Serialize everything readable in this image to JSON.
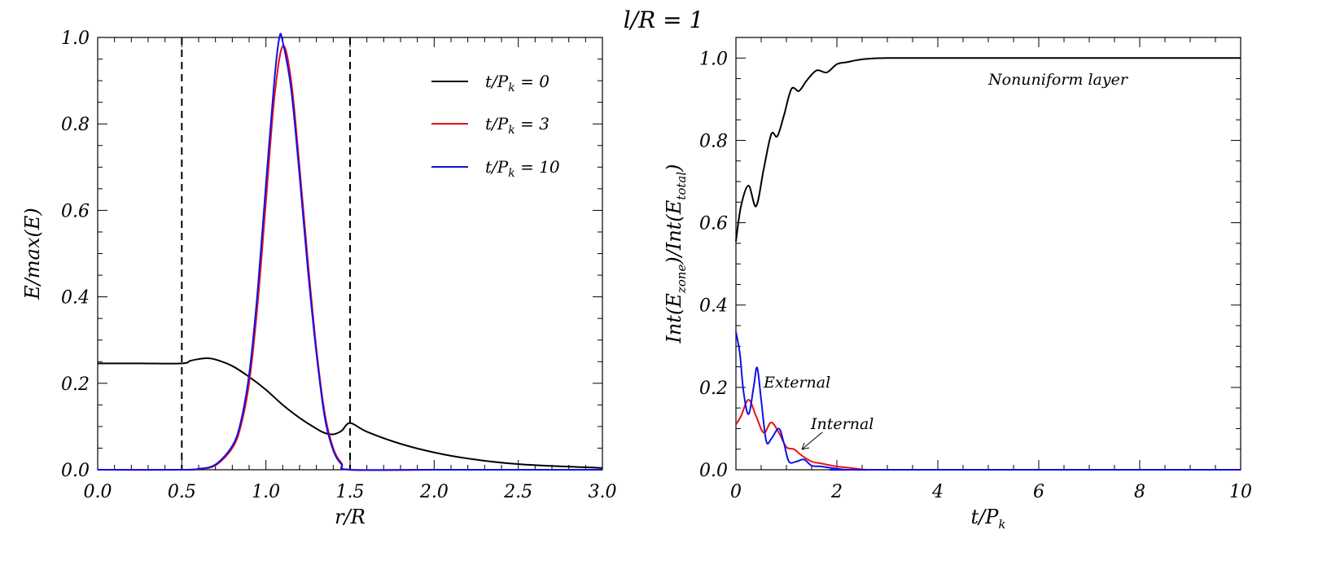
{
  "title": "l/R = 1",
  "chart_data": [
    {
      "type": "line",
      "xlabel": "r/R",
      "ylabel": "E/max(E)",
      "xlim": [
        0.0,
        3.0
      ],
      "ylim": [
        0.0,
        1.0
      ],
      "xticks": [
        "0.0",
        "0.5",
        "1.0",
        "1.5",
        "2.0",
        "2.5",
        "3.0"
      ],
      "yticks": [
        "0.0",
        "0.2",
        "0.4",
        "0.6",
        "0.8",
        "1.0"
      ],
      "legend_position": "top-right",
      "vlines": [
        0.5,
        1.5
      ],
      "series": [
        {
          "name": "t/P_k = 0",
          "color": "#000000",
          "x": [
            0.0,
            0.25,
            0.5,
            0.55,
            0.6,
            0.65,
            0.7,
            0.8,
            0.9,
            1.0,
            1.1,
            1.2,
            1.3,
            1.35,
            1.4,
            1.45,
            1.5,
            1.6,
            1.8,
            2.0,
            2.2,
            2.5,
            3.0
          ],
          "y": [
            0.246,
            0.246,
            0.246,
            0.252,
            0.256,
            0.258,
            0.255,
            0.24,
            0.215,
            0.185,
            0.15,
            0.12,
            0.095,
            0.085,
            0.082,
            0.09,
            0.108,
            0.088,
            0.06,
            0.04,
            0.026,
            0.013,
            0.004
          ]
        },
        {
          "name": "t/P_k = 3",
          "color": "#e8101a",
          "x": [
            0.0,
            0.5,
            0.6,
            0.7,
            0.8,
            0.85,
            0.9,
            0.95,
            1.0,
            1.05,
            1.1,
            1.15,
            1.2,
            1.25,
            1.3,
            1.35,
            1.4,
            1.45,
            1.5,
            2.0,
            3.0
          ],
          "y": [
            0.0,
            0.0,
            0.002,
            0.01,
            0.05,
            0.1,
            0.2,
            0.38,
            0.62,
            0.86,
            0.98,
            0.9,
            0.7,
            0.48,
            0.28,
            0.13,
            0.05,
            0.015,
            0.0,
            0.0,
            0.0
          ]
        },
        {
          "name": "t/P_k = 10",
          "color": "#1010e8",
          "x": [
            0.0,
            0.5,
            0.6,
            0.7,
            0.8,
            0.85,
            0.9,
            0.95,
            1.0,
            1.05,
            1.08,
            1.1,
            1.15,
            1.2,
            1.25,
            1.3,
            1.35,
            1.4,
            1.45,
            1.5,
            2.0,
            3.0
          ],
          "y": [
            0.0,
            0.0,
            0.002,
            0.012,
            0.055,
            0.11,
            0.22,
            0.41,
            0.66,
            0.9,
            1.0,
            0.99,
            0.88,
            0.68,
            0.46,
            0.27,
            0.12,
            0.045,
            0.012,
            0.0,
            0.0,
            0.0
          ]
        }
      ],
      "legend": [
        "t/Pk = 0",
        "t/Pk = 3",
        "t/Pk = 10"
      ]
    },
    {
      "type": "line",
      "xlabel": "t/Pk",
      "ylabel": "Int(Ezone)/Int(Etotal)",
      "xlim": [
        0,
        10
      ],
      "ylim": [
        0.0,
        1.05
      ],
      "xticks": [
        "0",
        "2",
        "4",
        "6",
        "8",
        "10"
      ],
      "yticks": [
        "0.0",
        "0.2",
        "0.4",
        "0.6",
        "0.8",
        "1.0"
      ],
      "annotations": [
        "Nonuniform layer",
        "External",
        "Internal"
      ],
      "series": [
        {
          "name": "Nonuniform layer",
          "color": "#000000",
          "x": [
            0.0,
            0.1,
            0.25,
            0.4,
            0.55,
            0.7,
            0.82,
            0.95,
            1.1,
            1.25,
            1.4,
            1.6,
            1.8,
            2.0,
            2.2,
            2.4,
            2.6,
            3.0,
            4.0,
            10.0
          ],
          "y": [
            0.555,
            0.64,
            0.69,
            0.64,
            0.73,
            0.815,
            0.81,
            0.86,
            0.925,
            0.92,
            0.945,
            0.97,
            0.965,
            0.985,
            0.99,
            0.995,
            0.998,
            1.0,
            1.0,
            1.0
          ]
        },
        {
          "name": "Internal",
          "color": "#e8101a",
          "x": [
            0.0,
            0.1,
            0.25,
            0.4,
            0.55,
            0.7,
            0.85,
            1.0,
            1.15,
            1.3,
            1.5,
            1.7,
            2.0,
            2.3,
            2.6,
            3.0,
            10.0
          ],
          "y": [
            0.11,
            0.13,
            0.17,
            0.13,
            0.09,
            0.115,
            0.09,
            0.055,
            0.05,
            0.035,
            0.02,
            0.015,
            0.008,
            0.004,
            0.0,
            0.0,
            0.0
          ]
        },
        {
          "name": "External",
          "color": "#1010e8",
          "x": [
            0.0,
            0.08,
            0.15,
            0.25,
            0.35,
            0.42,
            0.5,
            0.6,
            0.7,
            0.85,
            0.95,
            1.05,
            1.2,
            1.35,
            1.5,
            1.7,
            1.9,
            2.2,
            2.5,
            10.0
          ],
          "y": [
            0.335,
            0.28,
            0.19,
            0.135,
            0.2,
            0.248,
            0.17,
            0.07,
            0.075,
            0.1,
            0.065,
            0.02,
            0.02,
            0.025,
            0.01,
            0.008,
            0.004,
            0.0,
            0.0,
            0.0
          ]
        }
      ]
    }
  ]
}
